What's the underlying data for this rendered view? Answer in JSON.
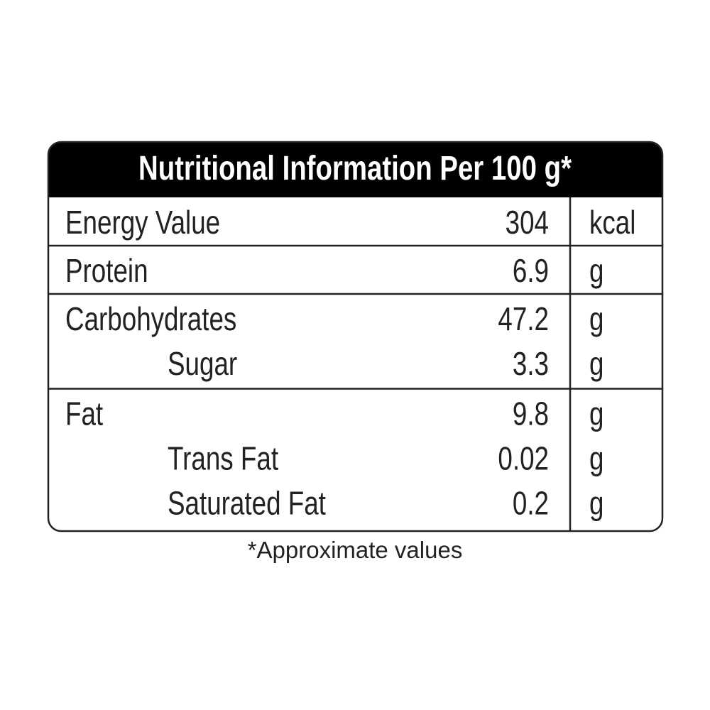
{
  "title": "Nutritional Information Per 100 g*",
  "groups": [
    {
      "rows": [
        {
          "label": "Energy Value",
          "value": "304",
          "unit": "kcal"
        }
      ]
    },
    {
      "rows": [
        {
          "label": "Protein",
          "value": "6.9",
          "unit": "g"
        }
      ]
    },
    {
      "rows": [
        {
          "label": "Carbohydrates",
          "value": "47.2",
          "unit": "g"
        },
        {
          "label": "Sugar",
          "value": "3.3",
          "unit": "g"
        }
      ]
    },
    {
      "rows": [
        {
          "label": "Fat",
          "value": "9.8",
          "unit": "g"
        },
        {
          "label": "Trans Fat",
          "value": "0.02",
          "unit": "g"
        },
        {
          "label": "Saturated Fat",
          "value": "0.2",
          "unit": "g"
        }
      ]
    }
  ],
  "footnote": "*Approximate values"
}
